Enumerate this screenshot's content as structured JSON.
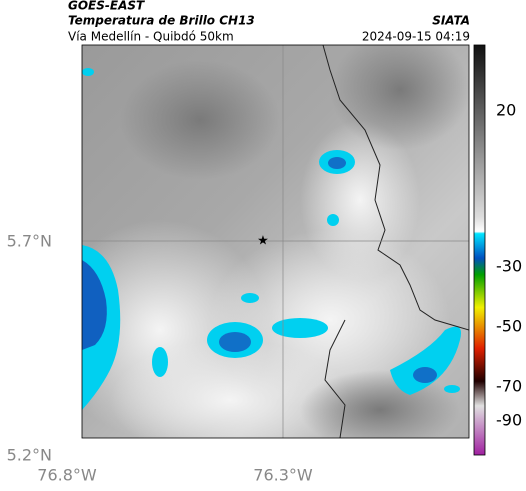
{
  "header": {
    "source": "GOES-EAST",
    "title": "Temperatura de Brillo CH13",
    "subtitle": "Vía Medellín - Quibdó 50km",
    "org": "SIATA",
    "datetime": "2024-09-15 04:19"
  },
  "axes": {
    "lat_ticks": [
      "5.7°N",
      "5.2°N"
    ],
    "lon_ticks": [
      "76.8°W",
      "76.3°W"
    ]
  },
  "colorbar": {
    "ticks": [
      "20",
      "-30",
      "-50",
      "-70",
      "-90"
    ]
  }
}
